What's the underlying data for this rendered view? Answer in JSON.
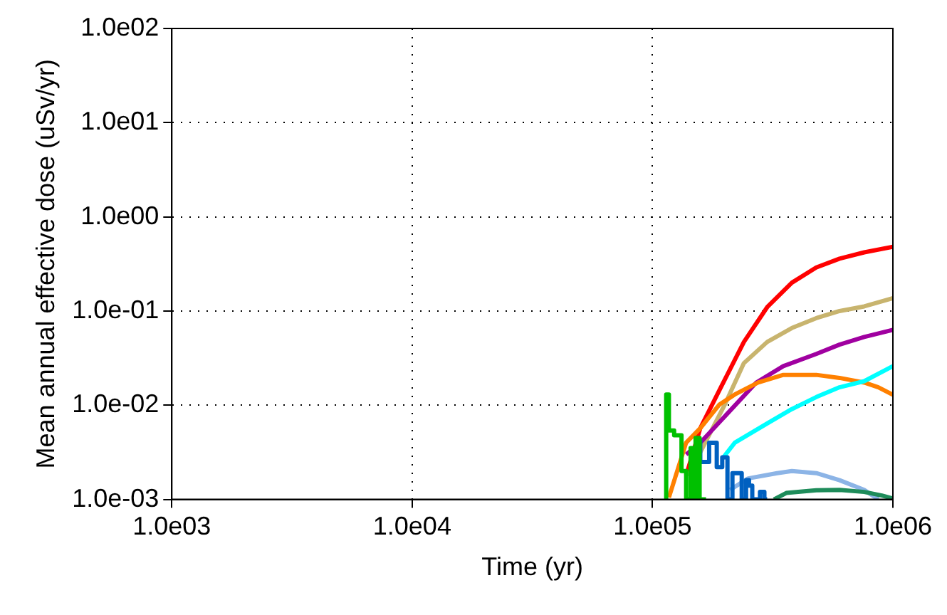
{
  "chart_data": {
    "type": "line",
    "xlabel": "Time (yr)",
    "ylabel": "Mean annual effective dose (uSv/yr)",
    "log": "xy",
    "grid": true,
    "line_style": "solid",
    "marker": "none",
    "legend": false,
    "xlim": [
      1000,
      1000000
    ],
    "xticks": [
      {
        "value": 1000,
        "label": "1.0e03"
      },
      {
        "value": 10000,
        "label": "1.0e04"
      },
      {
        "value": 100000,
        "label": "1.0e05"
      },
      {
        "value": 1000000,
        "label": "1.0e06"
      }
    ],
    "ylim": [
      0.001,
      100
    ],
    "yticks": [
      {
        "value": 0.001,
        "label": "1.0e-03"
      },
      {
        "value": 0.01,
        "label": "1.0e-02"
      },
      {
        "value": 0.1,
        "label": "1.0e-01"
      },
      {
        "value": 1,
        "label": "1.0e00"
      },
      {
        "value": 10,
        "label": "1.0e01"
      },
      {
        "value": 100,
        "label": "1.0e02"
      }
    ],
    "series": [
      {
        "type": "step",
        "color": "#00c000",
        "x": [
          114000,
          117000,
          123000,
          132000,
          138000,
          144000,
          148000,
          151000,
          157000,
          162000,
          167000
        ],
        "values": [
          0.001,
          0.013,
          0.0054,
          0.0048,
          0.002,
          0.001,
          0.0035,
          0.001,
          0.0045,
          0.001,
          0.001
        ]
      },
      {
        "type": "step",
        "color": "#0060c0",
        "x": [
          158000,
          165000,
          172000,
          185000,
          195000,
          205000,
          215000,
          235000,
          245000,
          252000,
          260000,
          268000,
          280000,
          292000,
          300000
        ],
        "values": [
          0.0043,
          0.0025,
          0.0025,
          0.004,
          0.0022,
          0.0028,
          0.001,
          0.0019,
          0.001,
          0.0016,
          0.0014,
          0.001,
          0.001,
          0.0012,
          0.001
        ]
      },
      {
        "type": "line",
        "color": "#1e8c5a",
        "x": [
          320000,
          360000,
          480000,
          600000,
          760000,
          900000,
          1000000
        ],
        "values": [
          0.001,
          0.00117,
          0.00125,
          0.00126,
          0.0012,
          0.0011,
          0.00102
        ]
      },
      {
        "type": "line",
        "color": "#8cb4e6",
        "x": [
          210000,
          250000,
          330000,
          380000,
          480000,
          600000,
          760000,
          870000
        ],
        "values": [
          0.00126,
          0.00167,
          0.0019,
          0.002,
          0.0019,
          0.0016,
          0.00126,
          0.001
        ]
      },
      {
        "type": "line",
        "color": "#00ffff",
        "x": [
          195000,
          220000,
          300000,
          380000,
          480000,
          600000,
          760000,
          1000000
        ],
        "values": [
          0.0027,
          0.004,
          0.0064,
          0.0091,
          0.0122,
          0.0155,
          0.018,
          0.026
        ]
      },
      {
        "type": "line",
        "color": "#ff8000",
        "x": [
          117000,
          138000,
          158000,
          190000,
          220000,
          275000,
          350000,
          480000,
          600000,
          760000,
          870000,
          1000000
        ],
        "values": [
          0.00105,
          0.004,
          0.0057,
          0.0102,
          0.013,
          0.0174,
          0.021,
          0.021,
          0.0195,
          0.0174,
          0.0155,
          0.0129
        ]
      },
      {
        "type": "line",
        "color": "#a000a0",
        "x": [
          138000,
          158000,
          270000,
          350000,
          480000,
          600000,
          760000,
          1000000
        ],
        "values": [
          0.003,
          0.004,
          0.0174,
          0.026,
          0.035,
          0.044,
          0.053,
          0.063
        ]
      },
      {
        "type": "line",
        "color": "#c8b46e",
        "x": [
          141000,
          200000,
          240000,
          300000,
          380000,
          480000,
          600000,
          760000,
          1000000
        ],
        "values": [
          0.0018,
          0.0102,
          0.028,
          0.047,
          0.066,
          0.084,
          0.1,
          0.112,
          0.137
        ]
      },
      {
        "type": "line",
        "color": "#ff0000",
        "x": [
          138000,
          158000,
          190000,
          240000,
          300000,
          380000,
          480000,
          600000,
          760000,
          1000000
        ],
        "values": [
          0.0018,
          0.0057,
          0.0145,
          0.047,
          0.11,
          0.2,
          0.29,
          0.36,
          0.42,
          0.48
        ]
      }
    ]
  }
}
